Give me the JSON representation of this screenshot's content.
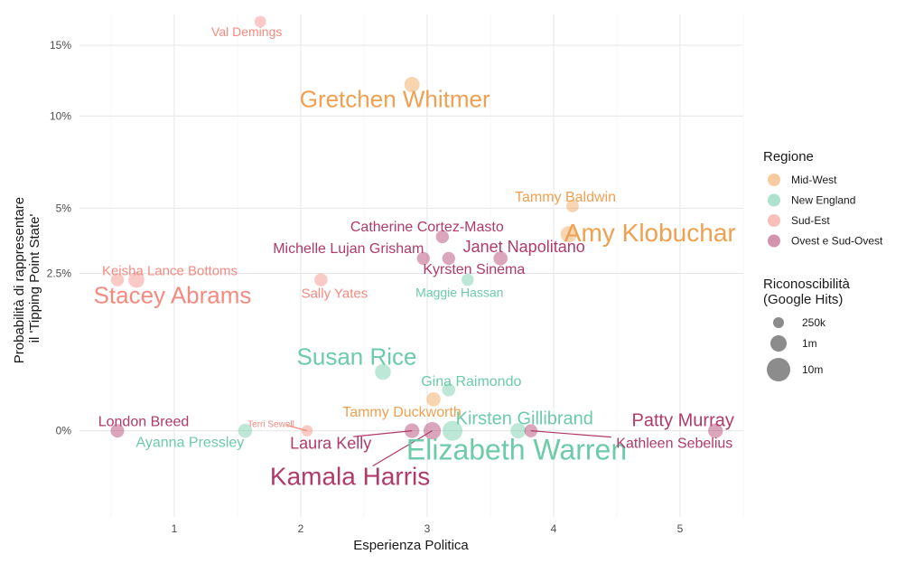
{
  "chart_data": {
    "type": "scatter",
    "xlabel": "Esperienza Politica",
    "ylabel_lines": [
      "Probabilità di rappresentare",
      "il 'Tipping Point State'"
    ],
    "x_ticks": [
      1,
      2,
      3,
      4,
      5
    ],
    "x_tick_labels": [
      "1",
      "2",
      "3",
      "4",
      "5"
    ],
    "y_ticks": [
      0,
      2.5,
      5,
      10,
      15
    ],
    "y_tick_labels": [
      "0%",
      "2.5%",
      "5%",
      "10%",
      "15%"
    ],
    "y_scale": "sqrt",
    "xlim": [
      0.25,
      5.5
    ],
    "ylim": [
      -0.75,
      17.5
    ],
    "grid": true,
    "legend": {
      "position": "right",
      "color_title": "Regione",
      "colors": [
        {
          "name": "Mid-West",
          "color": "#F0A050"
        },
        {
          "name": "New England",
          "color": "#6CCBA8"
        },
        {
          "name": "Sud-Est",
          "color": "#F48A80"
        },
        {
          "name": "Ovest e Sud-Ovest",
          "color": "#B03A6A"
        }
      ],
      "size_title_lines": [
        "Riconoscibilità",
        "(Google Hits)"
      ],
      "sizes": [
        {
          "label": "250k",
          "value": 250000
        },
        {
          "label": "1m",
          "value": 1000000
        },
        {
          "label": "10m",
          "value": 10000000
        }
      ]
    },
    "points": [
      {
        "name": "Val Demings",
        "region": "Sud-Est",
        "x": 1.68,
        "y": 16.9,
        "hits": 400000
      },
      {
        "name": "Gretchen Whitmer",
        "region": "Mid-West",
        "x": 2.88,
        "y": 12.1,
        "hits": 2500000
      },
      {
        "name": "Tammy Baldwin",
        "region": "Mid-West",
        "x": 4.15,
        "y": 5.1,
        "hits": 700000
      },
      {
        "name": "Amy Klobuchar",
        "region": "Mid-West",
        "x": 4.12,
        "y": 3.9,
        "hits": 3500000
      },
      {
        "name": "Catherine Cortez-Masto",
        "region": "Ovest e Sud-Ovest",
        "x": 3.12,
        "y": 3.8,
        "hits": 900000
      },
      {
        "name": "Michelle Lujan Grisham",
        "region": "Ovest e Sud-Ovest",
        "x": 2.97,
        "y": 3.0,
        "hits": 900000
      },
      {
        "name": "Janet Napolitano",
        "region": "Ovest e Sud-Ovest",
        "x": 3.58,
        "y": 3.0,
        "hits": 1500000
      },
      {
        "name": "Kyrsten Sinema",
        "region": "Ovest e Sud-Ovest",
        "x": 3.17,
        "y": 3.0,
        "hits": 900000
      },
      {
        "name": "Maggie Hassan",
        "region": "New England",
        "x": 3.32,
        "y": 2.3,
        "hits": 600000
      },
      {
        "name": "Keisha Lance Bottoms",
        "region": "Sud-Est",
        "x": 0.55,
        "y": 2.3,
        "hits": 900000
      },
      {
        "name": "Stacey Abrams",
        "region": "Sud-Est",
        "x": 0.7,
        "y": 2.3,
        "hits": 3000000
      },
      {
        "name": "Sally Yates",
        "region": "Sud-Est",
        "x": 2.16,
        "y": 2.3,
        "hits": 1000000
      },
      {
        "name": "Susan Rice",
        "region": "New England",
        "x": 2.65,
        "y": 0.35,
        "hits": 3000000
      },
      {
        "name": "Gina Raimondo",
        "region": "New England",
        "x": 3.17,
        "y": 0.17,
        "hits": 1000000
      },
      {
        "name": "Tammy Duckworth",
        "region": "Mid-West",
        "x": 3.05,
        "y": 0.1,
        "hits": 1500000
      },
      {
        "name": "London Breed",
        "region": "Ovest e Sud-Ovest",
        "x": 0.55,
        "y": 0.0,
        "hits": 1200000
      },
      {
        "name": "Ayanna Pressley",
        "region": "New England",
        "x": 1.56,
        "y": 0.0,
        "hits": 1500000
      },
      {
        "name": "Terri Sewell",
        "region": "Sud-Est",
        "x": 2.05,
        "y": 0.0,
        "hits": 350000
      },
      {
        "name": "Laura Kelly",
        "region": "Ovest e Sud-Ovest",
        "x": 2.88,
        "y": 0.0,
        "hits": 2000000
      },
      {
        "name": "Kamala Harris",
        "region": "Ovest e Sud-Ovest",
        "x": 3.04,
        "y": 0.0,
        "hits": 5000000
      },
      {
        "name": "Elizabeth Warren",
        "region": "New England",
        "x": 3.2,
        "y": 0.0,
        "hits": 10000000
      },
      {
        "name": "Kirsten Gillibrand",
        "region": "New England",
        "x": 3.72,
        "y": 0.0,
        "hits": 2500000
      },
      {
        "name": "Kathleen Sebelius",
        "region": "Ovest e Sud-Ovest",
        "x": 3.82,
        "y": 0.0,
        "hits": 1000000
      },
      {
        "name": "Patty Murray",
        "region": "Ovest e Sud-Ovest",
        "x": 5.28,
        "y": 0.0,
        "hits": 2000000
      }
    ]
  }
}
